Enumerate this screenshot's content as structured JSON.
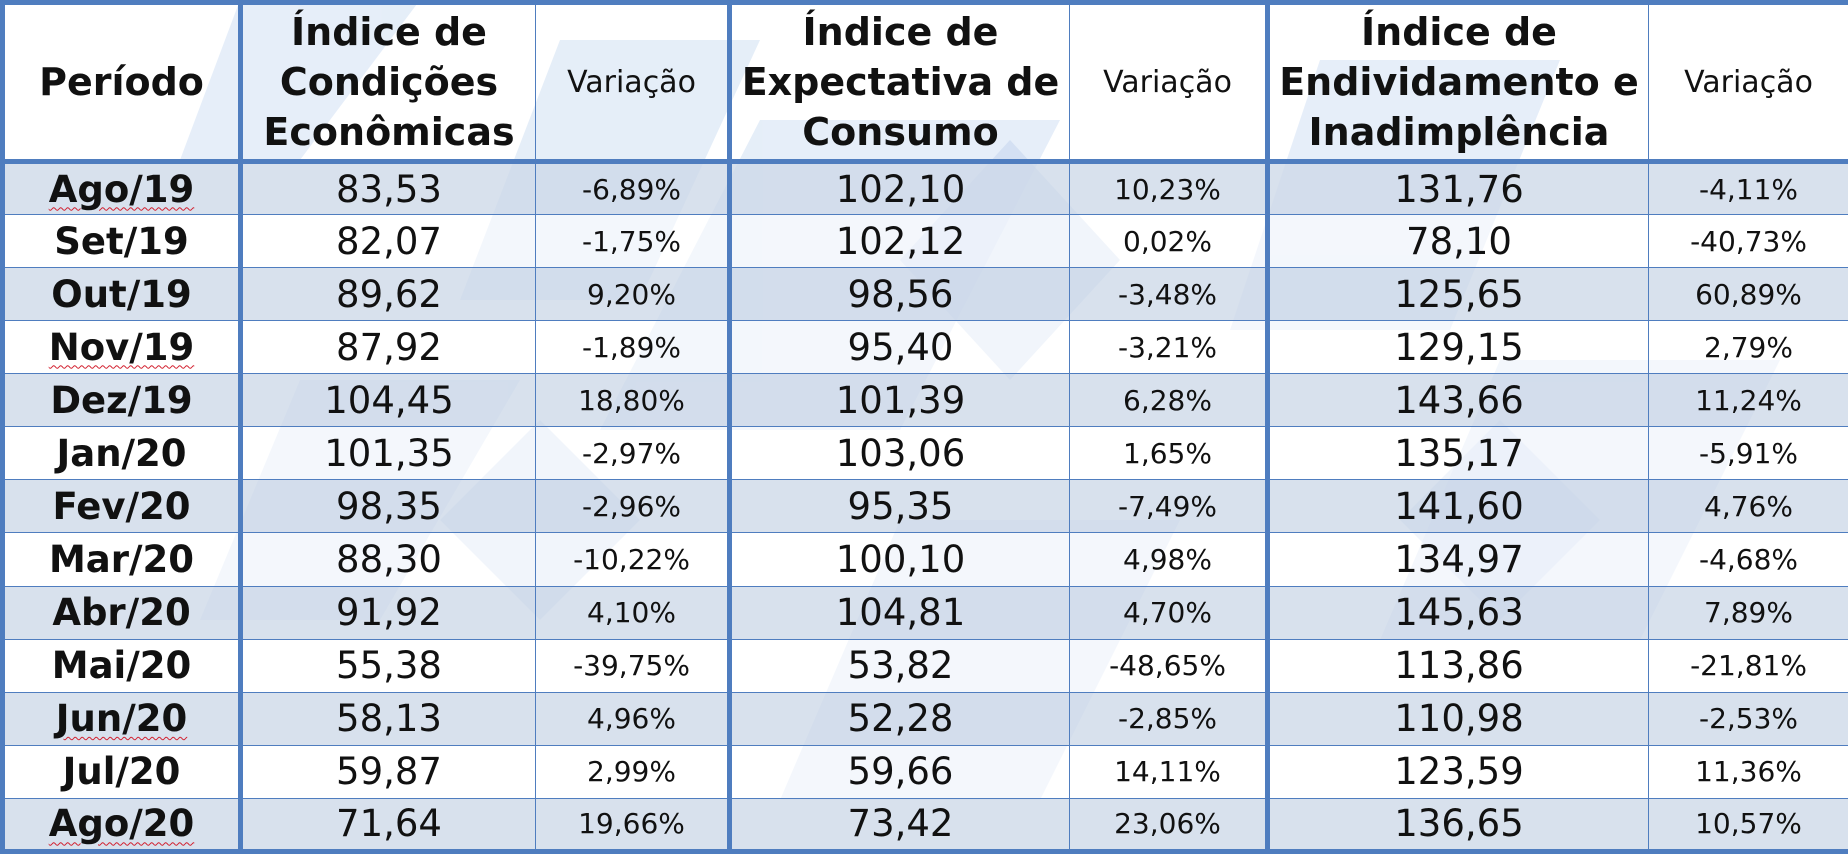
{
  "table": {
    "headers": {
      "periodo": "Período",
      "ice": [
        "Índice de",
        "Condições",
        "Econômicas"
      ],
      "iec": [
        "Índice de",
        "Expectativa de",
        "Consumo"
      ],
      "iei": [
        "Índice de",
        "Endividamento e",
        "Inadimplência"
      ],
      "variacao": "Variação"
    },
    "rows": [
      {
        "periodo": "Ago/19",
        "ice": "83,53",
        "ice_var": "-6,89%",
        "iec": "102,10",
        "iec_var": "10,23%",
        "iei": "131,76",
        "iei_var": "-4,11%"
      },
      {
        "periodo": "Set/19",
        "ice": "82,07",
        "ice_var": "-1,75%",
        "iec": "102,12",
        "iec_var": "0,02%",
        "iei": "78,10",
        "iei_var": "-40,73%"
      },
      {
        "periodo": "Out/19",
        "ice": "89,62",
        "ice_var": "9,20%",
        "iec": "98,56",
        "iec_var": "-3,48%",
        "iei": "125,65",
        "iei_var": "60,89%"
      },
      {
        "periodo": "Nov/19",
        "ice": "87,92",
        "ice_var": "-1,89%",
        "iec": "95,40",
        "iec_var": "-3,21%",
        "iei": "129,15",
        "iei_var": "2,79%"
      },
      {
        "periodo": "Dez/19",
        "ice": "104,45",
        "ice_var": "18,80%",
        "iec": "101,39",
        "iec_var": "6,28%",
        "iei": "143,66",
        "iei_var": "11,24%"
      },
      {
        "periodo": "Jan/20",
        "ice": "101,35",
        "ice_var": "-2,97%",
        "iec": "103,06",
        "iec_var": "1,65%",
        "iei": "135,17",
        "iei_var": "-5,91%"
      },
      {
        "periodo": "Fev/20",
        "ice": "98,35",
        "ice_var": "-2,96%",
        "iec": "95,35",
        "iec_var": "-7,49%",
        "iei": "141,60",
        "iei_var": "4,76%"
      },
      {
        "periodo": "Mar/20",
        "ice": "88,30",
        "ice_var": "-10,22%",
        "iec": "100,10",
        "iec_var": "4,98%",
        "iei": "134,97",
        "iei_var": "-4,68%"
      },
      {
        "periodo": "Abr/20",
        "ice": "91,92",
        "ice_var": "4,10%",
        "iec": "104,81",
        "iec_var": "4,70%",
        "iei": "145,63",
        "iei_var": "7,89%"
      },
      {
        "periodo": "Mai/20",
        "ice": "55,38",
        "ice_var": "-39,75%",
        "iec": "53,82",
        "iec_var": "-48,65%",
        "iei": "113,86",
        "iei_var": "-21,81%"
      },
      {
        "periodo": "Jun/20",
        "ice": "58,13",
        "ice_var": "4,96%",
        "iec": "52,28",
        "iec_var": "-2,85%",
        "iei": "110,98",
        "iei_var": "-2,53%"
      },
      {
        "periodo": "Jul/20",
        "ice": "59,87",
        "ice_var": "2,99%",
        "iec": "59,66",
        "iec_var": "14,11%",
        "iei": "123,59",
        "iei_var": "11,36%"
      },
      {
        "periodo": "Ago/20",
        "ice": "71,64",
        "ice_var": "19,66%",
        "iec": "73,42",
        "iec_var": "23,06%",
        "iei": "136,65",
        "iei_var": "10,57%"
      }
    ]
  },
  "colors": {
    "border": "#4f7dbf",
    "stripe": "#cdd8e8",
    "text": "#111111",
    "spellcheck": "#d2202f"
  },
  "spellcheck_flagged": [
    "Ago/19",
    "Nov/19",
    "Jun/20",
    "Ago/20"
  ]
}
